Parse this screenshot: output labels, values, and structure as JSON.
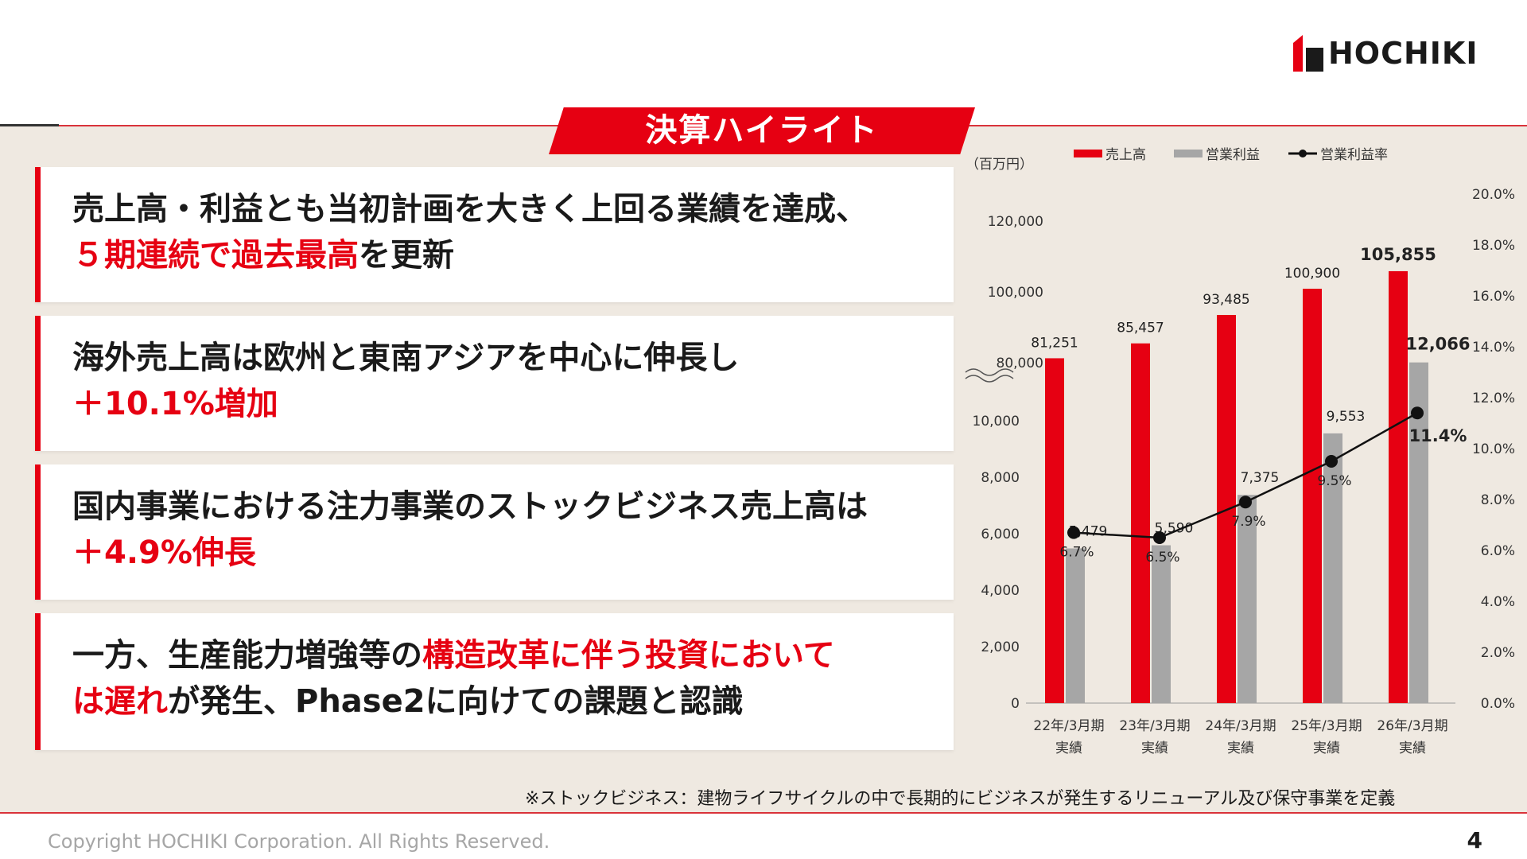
{
  "header": {
    "logo_text": "HOCHIKI",
    "title": "決算ハイライト"
  },
  "highlights": [
    {
      "parts": [
        {
          "text": "売上高・利益とも当初計画を大きく上回る業績を達成、",
          "highlight": false
        },
        {
          "text": "\n",
          "highlight": false
        },
        {
          "text": "５期連続で過去最高",
          "highlight": true
        },
        {
          "text": "を更新",
          "highlight": false
        }
      ]
    },
    {
      "parts": [
        {
          "text": "海外売上高は欧州と東南アジアを中心に伸長し",
          "highlight": false
        },
        {
          "text": "\n",
          "highlight": false
        },
        {
          "text": "＋10.1%増加",
          "highlight": true
        }
      ]
    },
    {
      "parts": [
        {
          "text": "国内事業における注力事業のストックビジネス売上高は",
          "highlight": false
        },
        {
          "text": "\n",
          "highlight": false
        },
        {
          "text": "＋4.9%伸長",
          "highlight": true
        }
      ]
    },
    {
      "parts": [
        {
          "text": "一方、生産能力増強等の",
          "highlight": false
        },
        {
          "text": "構造改革に伴う投資において",
          "highlight": true
        },
        {
          "text": "\n",
          "highlight": false
        },
        {
          "text": "は遅れ",
          "highlight": true
        },
        {
          "text": "が発生、Phase2に向けての課題と認識",
          "highlight": false
        }
      ]
    }
  ],
  "chart_data": {
    "type": "bar",
    "unit_label": "（百万円）",
    "categories": [
      "22年/3月期",
      "23年/3月期",
      "24年/3月期",
      "25年/3月期",
      "26年/3月期"
    ],
    "category_sublabel": "実績",
    "series": [
      {
        "name": "売上高",
        "kind": "bar",
        "axis": "left-upper",
        "color": "#e60012",
        "values": [
          81251,
          85457,
          93485,
          100900,
          105855
        ],
        "labels": [
          "81,251",
          "85,457",
          "93,485",
          "100,900",
          "105,855"
        ]
      },
      {
        "name": "営業利益",
        "kind": "bar",
        "axis": "left-lower",
        "color": "#a6a6a6",
        "values": [
          5479,
          5590,
          7375,
          9553,
          12066
        ],
        "labels": [
          "5,479",
          "5,590",
          "7,375",
          "9,553",
          "12,066"
        ]
      },
      {
        "name": "営業利益率",
        "kind": "line",
        "axis": "right",
        "color": "#111111",
        "values": [
          6.7,
          6.5,
          7.9,
          9.5,
          11.4
        ],
        "labels": [
          "6.7%",
          "6.5%",
          "7.9%",
          "9.5%",
          "11.4%"
        ]
      }
    ],
    "y_left_upper_ticks": [
      "80,000",
      "100,000",
      "120,000"
    ],
    "y_left_upper_range": [
      80000,
      120000
    ],
    "y_left_lower_ticks": [
      "0",
      "2,000",
      "4,000",
      "6,000",
      "8,000",
      "10,000"
    ],
    "y_left_lower_range": [
      0,
      12000
    ],
    "y_right_ticks": [
      "0.0%",
      "2.0%",
      "4.0%",
      "6.0%",
      "8.0%",
      "10.0%",
      "12.0%",
      "14.0%",
      "16.0%",
      "18.0%",
      "20.0%"
    ],
    "y_right_range": [
      0,
      20
    ],
    "axis_break": true,
    "legend_position": "top",
    "grid": false
  },
  "footnote": "※ストックビジネス：建物ライフサイクルの中で長期的にビジネスが発生するリニューアル及び保守事業を定義",
  "footer": {
    "copyright": "Copyright HOCHIKI Corporation. All Rights Reserved.",
    "page_number": "4"
  },
  "colors": {
    "accent": "#e60012",
    "gray_bar": "#a6a6a6",
    "panel": "#efe9e1"
  }
}
